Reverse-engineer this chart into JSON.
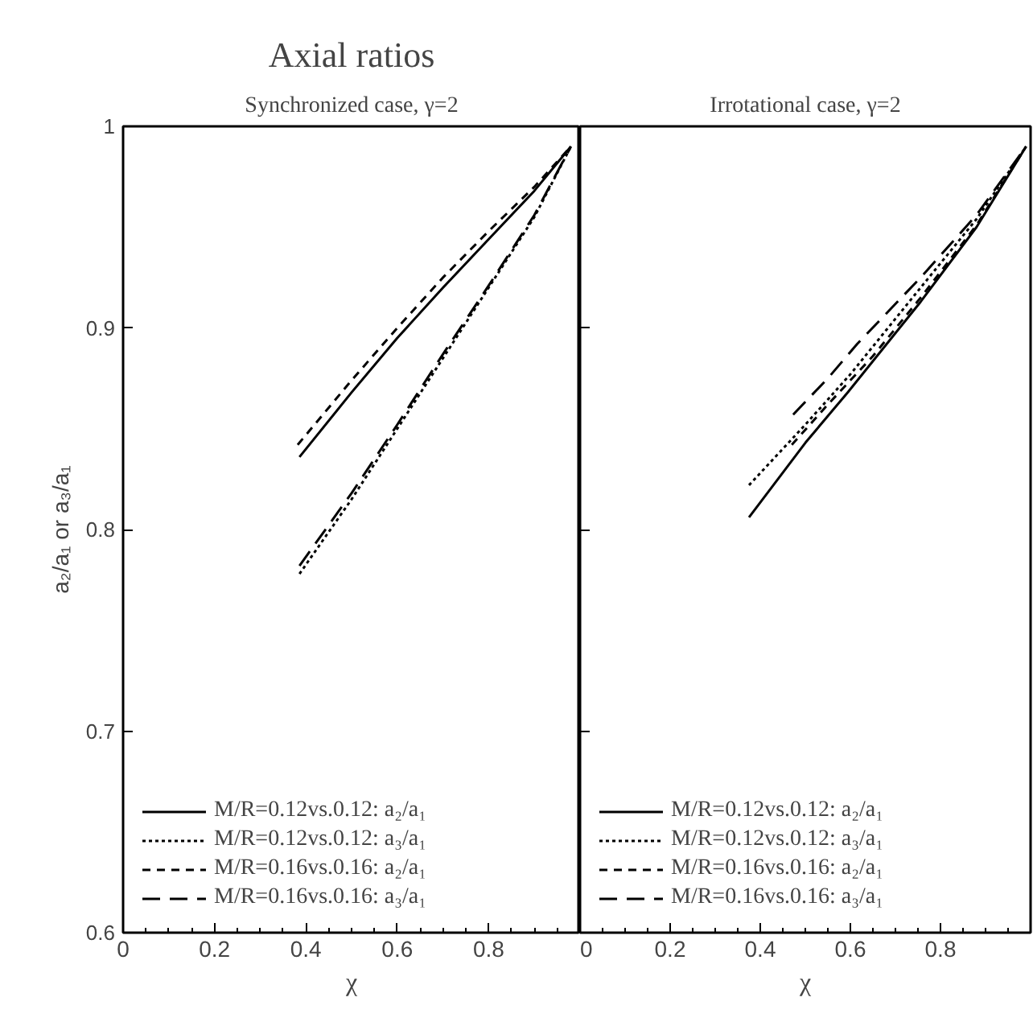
{
  "chart_data": [
    {
      "type": "line",
      "title": "Axial ratios",
      "subtitle": "Synchronized case, γ=2",
      "xlabel": "χ",
      "ylabel": "a₂/a₁ or a₃/a₁",
      "xlim": [
        0,
        1
      ],
      "xticks": [
        0,
        0.2,
        0.4,
        0.6,
        0.8,
        {
          "value": 1,
          "label": null
        }
      ],
      "ylim": [
        0.6,
        1
      ],
      "yticks": [
        0.6,
        0.7,
        0.8,
        0.9,
        1
      ],
      "legend": "bottom left",
      "grid": false,
      "marker": "none",
      "series": [
        {
          "name": "M/R=0.12vs.0.12: a₂/a₁",
          "color": "#000000",
          "line_style": "solid",
          "x": [
            0.386,
            0.5,
            0.6,
            0.7,
            0.8,
            0.9,
            0.98
          ],
          "values": [
            0.836,
            0.868,
            0.895,
            0.92,
            0.944,
            0.968,
            0.99
          ]
        },
        {
          "name": "M/R=0.12vs.0.12: a₃/a₁",
          "color": "#000000",
          "line_style": "dotted",
          "x": [
            0.386,
            0.5,
            0.6,
            0.7,
            0.8,
            0.9,
            0.98
          ],
          "values": [
            0.778,
            0.815,
            0.85,
            0.885,
            0.92,
            0.955,
            0.99
          ]
        },
        {
          "name": "M/R=0.16vs.0.16: a₂/a₁",
          "color": "#000000",
          "line_style": "dashed",
          "x": [
            0.382,
            0.5,
            0.6,
            0.7,
            0.8,
            0.9,
            0.98
          ],
          "values": [
            0.842,
            0.874,
            0.9,
            0.925,
            0.948,
            0.97,
            0.99
          ]
        },
        {
          "name": "M/R=0.16vs.0.16: a₃/a₁",
          "color": "#000000",
          "line_style": "long dashed",
          "x": [
            0.386,
            0.5,
            0.6,
            0.7,
            0.8,
            0.9,
            0.98
          ],
          "values": [
            0.782,
            0.818,
            0.852,
            0.887,
            0.921,
            0.956,
            0.99
          ]
        }
      ]
    },
    {
      "type": "line",
      "subtitle": "Irrotational case, γ=2",
      "xlabel": "χ",
      "xlim": [
        0,
        1
      ],
      "xticks": [
        0,
        0.2,
        0.4,
        0.6,
        0.8,
        {
          "value": 1,
          "label": null
        }
      ],
      "ylim": [
        0.6,
        1
      ],
      "yticks": [
        0.6,
        0.7,
        0.8,
        0.9,
        1
      ],
      "tick_labels": "x",
      "legend": "bottom left",
      "grid": false,
      "marker": "none",
      "series": [
        {
          "name": "M/R=0.12vs.0.12: a₂/a₁",
          "color": "#000000",
          "line_style": "solid",
          "x": [
            0.375,
            0.5,
            0.594,
            0.756,
            0.88,
            0.99
          ],
          "values": [
            0.806,
            0.843,
            0.868,
            0.913,
            0.95,
            0.99
          ]
        },
        {
          "name": "M/R=0.12vs.0.12: a₃/a₁",
          "color": "#000000",
          "line_style": "dotted",
          "x": [
            0.375,
            0.5,
            0.6,
            0.756,
            0.88,
            0.99
          ],
          "values": [
            0.822,
            0.852,
            0.877,
            0.92,
            0.954,
            0.99
          ]
        },
        {
          "name": "M/R=0.16vs.0.16: a₂/a₁",
          "color": "#000000",
          "line_style": "dashed",
          "x": [
            0.47,
            0.55,
            0.65,
            0.756,
            0.88,
            0.99
          ],
          "values": [
            0.842,
            0.862,
            0.886,
            0.915,
            0.951,
            0.99
          ]
        },
        {
          "name": "M/R=0.16vs.0.16: a₃/a₁",
          "color": "#000000",
          "line_style": "long dashed",
          "x": [
            0.473,
            0.55,
            0.615,
            0.756,
            0.88,
            0.99
          ],
          "values": [
            0.857,
            0.875,
            0.892,
            0.925,
            0.956,
            0.99
          ]
        }
      ]
    }
  ]
}
